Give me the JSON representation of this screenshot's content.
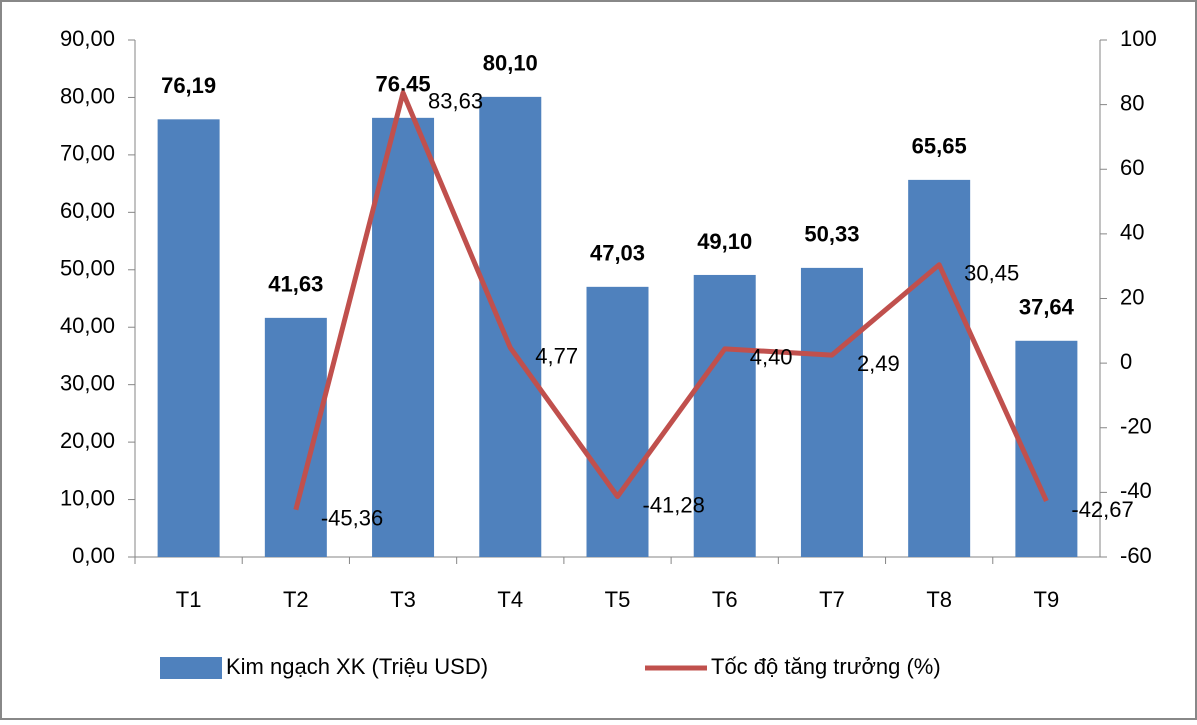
{
  "chart_data": {
    "type": "bar",
    "categories": [
      "T1",
      "T2",
      "T3",
      "T4",
      "T5",
      "T6",
      "T7",
      "T8",
      "T9"
    ],
    "series": [
      {
        "name": "Kim ngạch XK (Triệu USD)",
        "type": "bar",
        "color": "#4f81bd",
        "values": [
          76.19,
          41.63,
          76.45,
          80.1,
          47.03,
          49.1,
          50.33,
          65.65,
          37.64
        ],
        "value_labels": [
          "76,19",
          "41,63",
          "76,45",
          "80,10",
          "47,03",
          "49,10",
          "50,33",
          "65,65",
          "37,64"
        ]
      },
      {
        "name": "Tốc độ tăng trưởng (%)",
        "type": "line",
        "axis": "y2",
        "color": "#c0504d",
        "values": [
          null,
          -45.36,
          83.63,
          4.77,
          -41.28,
          4.4,
          2.49,
          30.45,
          -42.67
        ],
        "value_labels": [
          null,
          "-45,36",
          "83,63",
          "4,77",
          "-41,28",
          "4,40",
          "2,49",
          "30,45",
          "-42,67"
        ]
      }
    ],
    "ylim": [
      0,
      90
    ],
    "yticks": [
      {
        "value": 0,
        "label": "0,00"
      },
      {
        "value": 10,
        "label": "10,00"
      },
      {
        "value": 20,
        "label": "20,00"
      },
      {
        "value": 30,
        "label": "30,00"
      },
      {
        "value": 40,
        "label": "40,00"
      },
      {
        "value": 50,
        "label": "50,00"
      },
      {
        "value": 60,
        "label": "60,00"
      },
      {
        "value": 70,
        "label": "70,00"
      },
      {
        "value": 80,
        "label": "80,00"
      },
      {
        "value": 90,
        "label": "90,00"
      }
    ],
    "y2lim": [
      -60,
      100
    ],
    "y2ticks": [
      -60,
      -40,
      -20,
      0,
      20,
      40,
      60,
      80,
      100
    ],
    "legend": "bottom"
  }
}
